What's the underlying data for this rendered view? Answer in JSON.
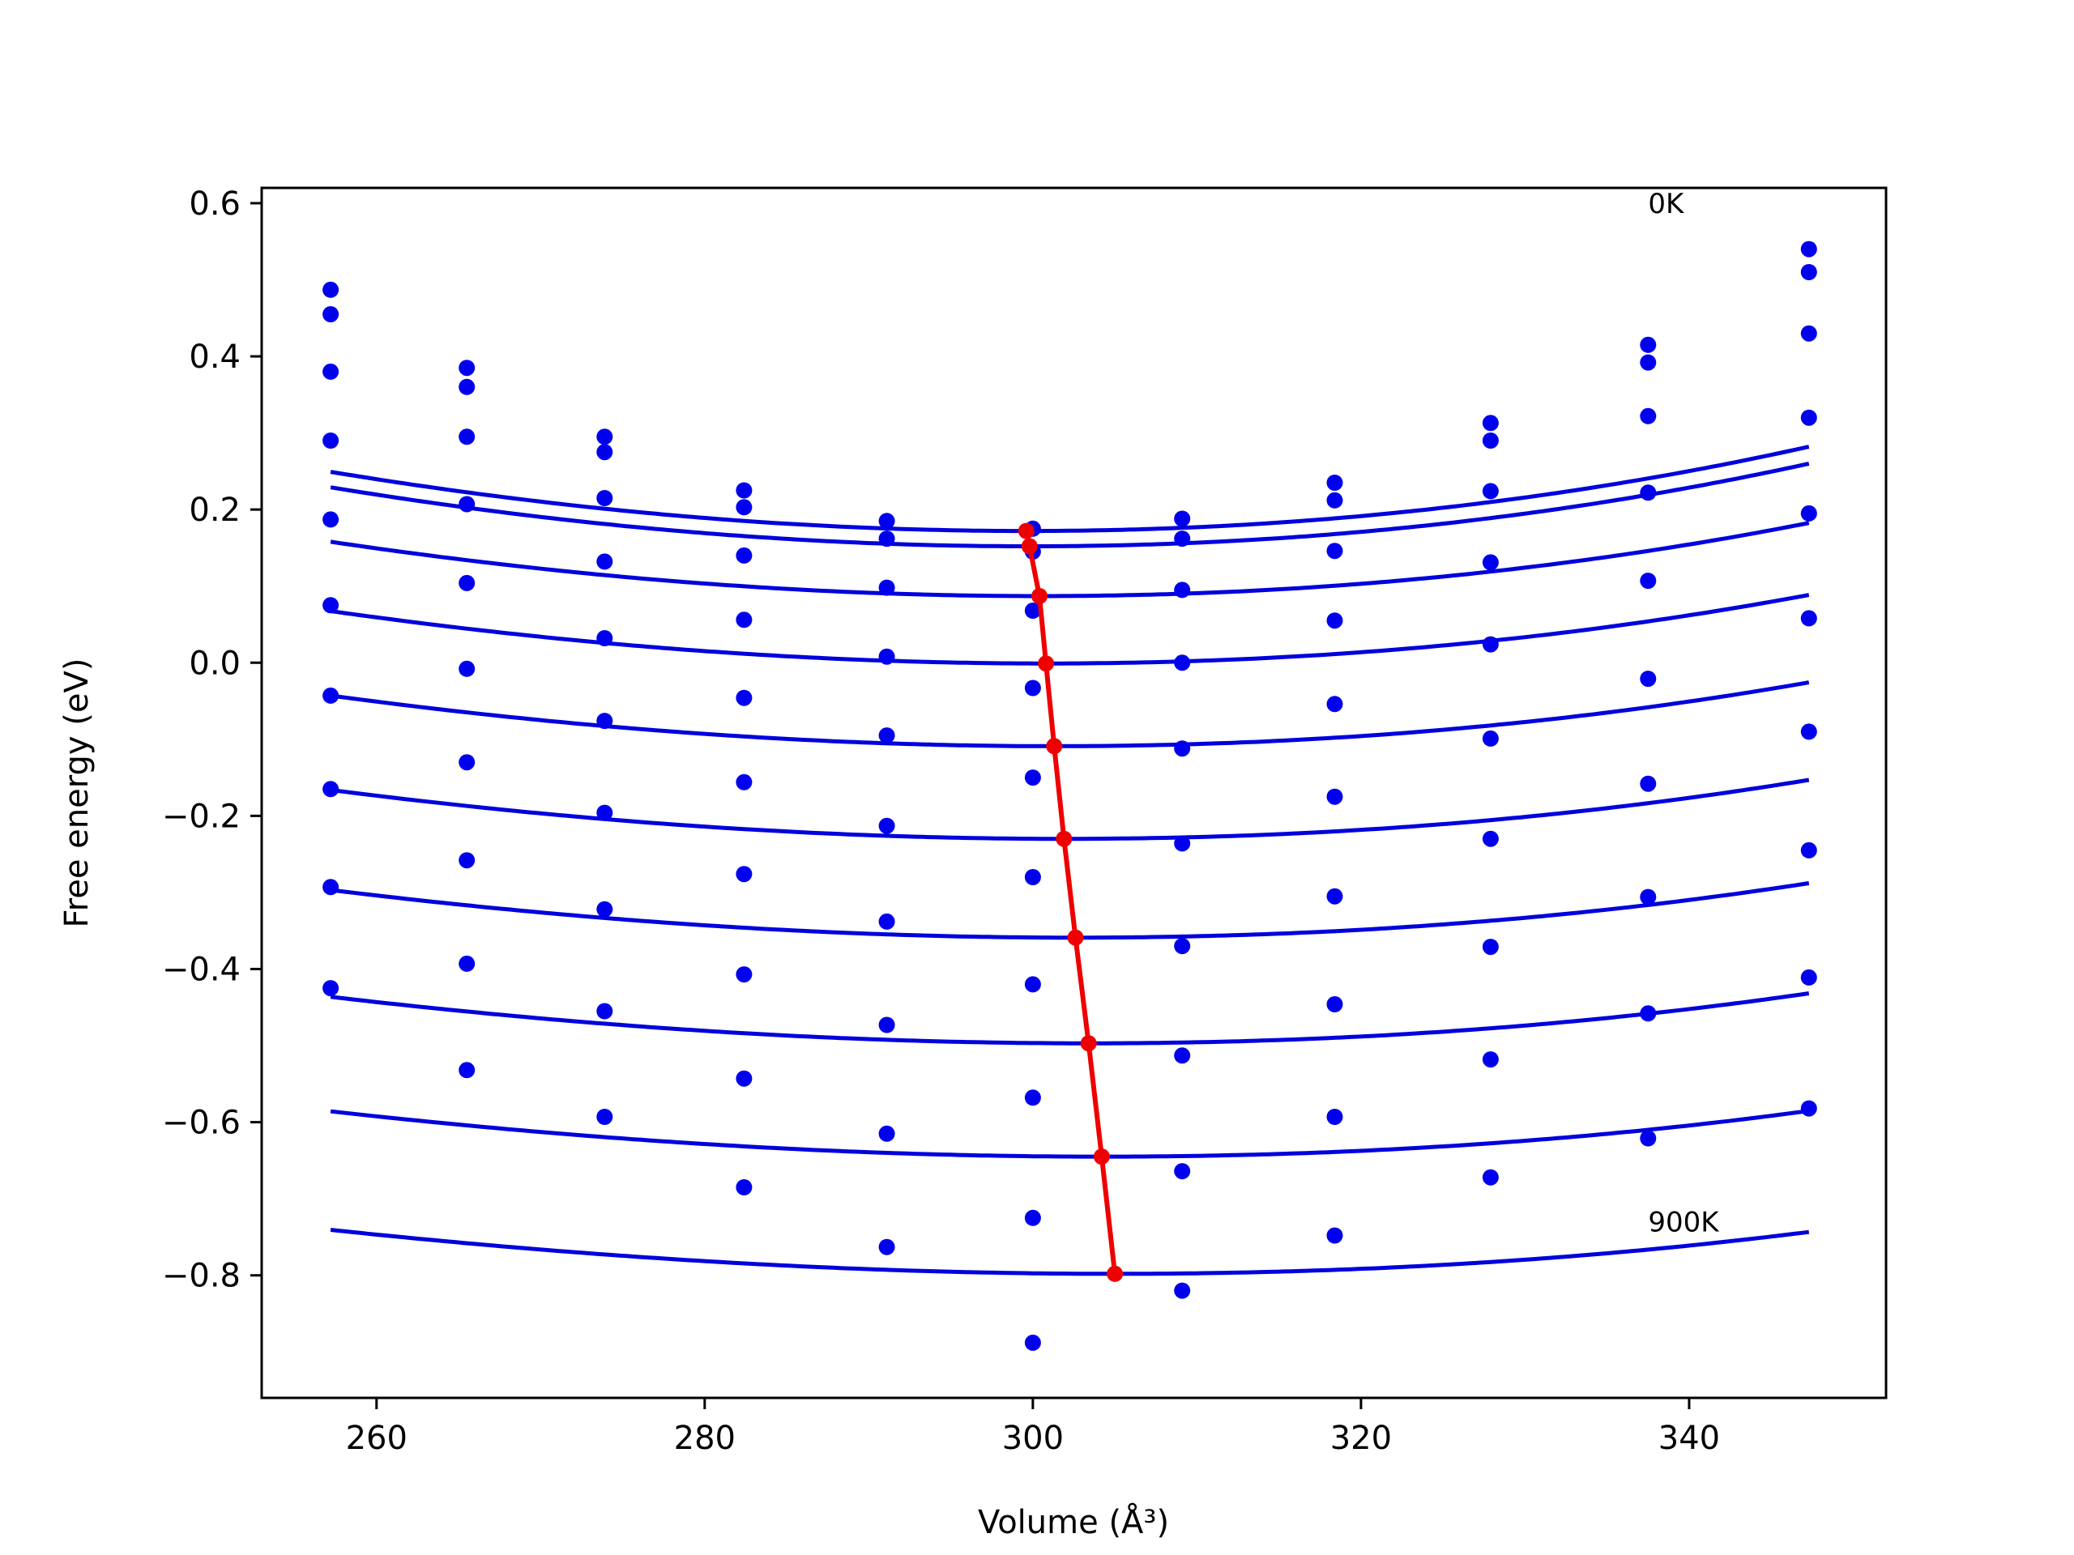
{
  "chart_data": {
    "type": "line",
    "title": "",
    "xlabel": "Volume (Å³)",
    "ylabel": "Free energy (eV)",
    "xlim": [
      253,
      352
    ],
    "ylim": [
      -0.96,
      0.62
    ],
    "xticks": [
      260,
      280,
      300,
      320,
      340
    ],
    "xtick_labels": [
      "260",
      "280",
      "300",
      "320",
      "340"
    ],
    "yticks": [
      0.6,
      0.4,
      0.2,
      0.0,
      -0.2,
      -0.4,
      -0.6,
      -0.8
    ],
    "ytick_labels": [
      "0.6",
      "0.4",
      "0.2",
      "0.0",
      "−0.2",
      "−0.4",
      "−0.6",
      "−0.8"
    ],
    "grid": false,
    "legend": "none",
    "colors": {
      "fit": "#0000dd",
      "points": "#0000ee",
      "minima": "#ee0000"
    },
    "annotations": [
      {
        "text": "0K",
        "x": 337.5,
        "y": 0.6
      },
      {
        "text": "900K",
        "x": 337.5,
        "y": -0.73
      }
    ],
    "volumes": [
      257.2,
      265.5,
      273.9,
      282.4,
      291.1,
      300.0,
      309.1,
      318.4,
      327.9,
      337.5,
      347.3
    ],
    "series": [
      {
        "values": [
          0.487,
          0.385,
          0.295,
          0.225,
          0.185,
          0.175,
          0.188,
          0.235,
          0.313,
          0.415,
          0.54
        ],
        "fit": {
          "vmin": 299.6,
          "emin": 0.172,
          "a": 4.55e-05,
          "b": 6e-08
        }
      },
      {
        "values": [
          0.455,
          0.36,
          0.275,
          0.203,
          0.162,
          0.145,
          0.162,
          0.212,
          0.29,
          0.392,
          0.51
        ],
        "fit": {
          "vmin": 299.8,
          "emin": 0.152,
          "a": 4.5e-05,
          "b": 6e-08
        }
      },
      {
        "values": [
          0.38,
          0.295,
          0.215,
          0.14,
          0.098,
          0.068,
          0.095,
          0.146,
          0.224,
          0.322,
          0.43
        ],
        "fit": {
          "vmin": 300.4,
          "emin": 0.087,
          "a": 4.06e-05,
          "b": 6e-08
        }
      },
      {
        "values": [
          0.29,
          0.207,
          0.132,
          0.056,
          0.008,
          -0.033,
          0.0,
          0.055,
          0.131,
          0.222,
          0.32
        ],
        "fit": {
          "vmin": 300.8,
          "emin": -0.001,
          "a": 3.86e-05,
          "b": 6e-08
        }
      },
      {
        "values": [
          0.187,
          0.104,
          0.032,
          -0.046,
          -0.095,
          -0.15,
          -0.112,
          -0.054,
          0.024,
          0.107,
          0.195
        ],
        "fit": {
          "vmin": 301.3,
          "emin": -0.109,
          "a": 3.66e-05,
          "b": 6e-08
        }
      },
      {
        "values": [
          0.075,
          -0.008,
          -0.076,
          -0.156,
          -0.213,
          -0.28,
          -0.236,
          -0.175,
          -0.099,
          -0.021,
          0.058
        ],
        "fit": {
          "vmin": 301.9,
          "emin": -0.23,
          "a": 3.46e-05,
          "b": 6e-08
        }
      },
      {
        "values": [
          -0.043,
          -0.13,
          -0.196,
          -0.276,
          -0.338,
          -0.42,
          -0.37,
          -0.305,
          -0.23,
          -0.158,
          -0.09
        ],
        "fit": {
          "vmin": 302.6,
          "emin": -0.359,
          "a": 3.29e-05,
          "b": 6e-08
        }
      },
      {
        "values": [
          -0.165,
          -0.258,
          -0.322,
          -0.407,
          -0.473,
          -0.568,
          -0.513,
          -0.446,
          -0.371,
          -0.306,
          -0.245
        ],
        "fit": {
          "vmin": 303.4,
          "emin": -0.497,
          "a": 3.12e-05,
          "b": 6e-08
        }
      },
      {
        "values": [
          -0.293,
          -0.393,
          -0.455,
          -0.543,
          -0.615,
          -0.725,
          -0.664,
          -0.593,
          -0.518,
          -0.458,
          -0.411
        ],
        "fit": {
          "vmin": 304.2,
          "emin": -0.645,
          "a": 2.96e-05,
          "b": 6e-08
        }
      },
      {
        "values": [
          -0.425,
          -0.532,
          -0.593,
          -0.685,
          -0.763,
          -0.888,
          -0.82,
          -0.748,
          -0.672,
          -0.621,
          -0.582
        ],
        "fit": {
          "vmin": 305.0,
          "emin": -0.798,
          "a": 2.8e-05,
          "b": 6e-08
        }
      }
    ],
    "minima_path": {
      "x": [
        299.6,
        299.8,
        300.4,
        300.8,
        301.3,
        301.9,
        302.6,
        303.4,
        304.2,
        305.0
      ],
      "y": [
        0.172,
        0.152,
        0.087,
        -0.001,
        -0.109,
        -0.23,
        -0.359,
        -0.497,
        -0.645,
        -0.798
      ]
    }
  }
}
